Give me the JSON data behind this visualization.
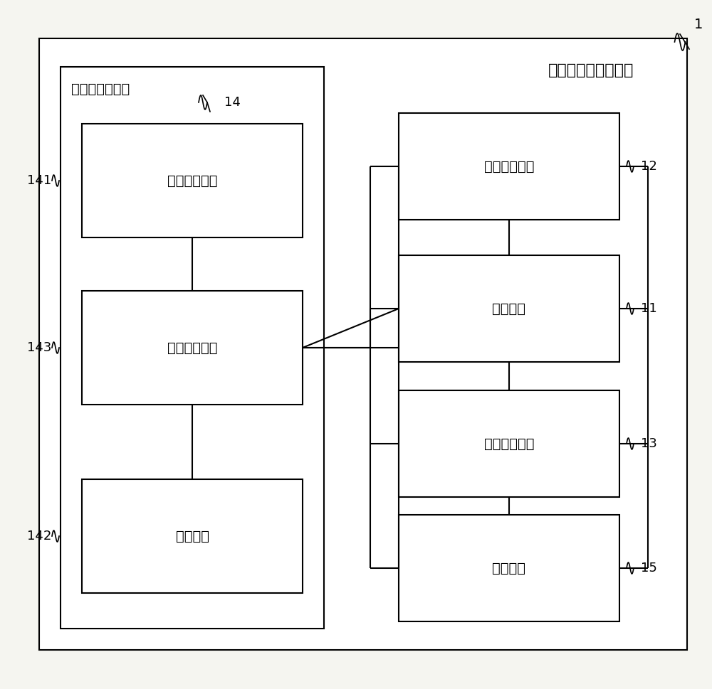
{
  "fig_width": 10.0,
  "fig_height": 9.69,
  "bg_color": "#f5f5f0",
  "box_color": "#ffffff",
  "box_edge_color": "#000000",
  "line_color": "#000000",
  "font_color": "#000000",
  "title_text": "直饮水设备监测系统",
  "label_1": "1",
  "label_14": "14",
  "label_141": "141",
  "label_143": "143",
  "label_142": "142",
  "label_11": "11",
  "label_12": "12",
  "label_13": "13",
  "label_15": "15",
  "outer_left_box_label": "太阳能供电模块",
  "box_141_label": "太阳能电池板",
  "box_143_label": "电池管理模块",
  "box_142_label": "充电电池",
  "box_12_label": "流量检测模块",
  "box_11_label": "主控模块",
  "box_13_label": "漏水检测模块",
  "box_15_label": "开关模块",
  "font_size_main": 16,
  "font_size_label": 14,
  "font_size_ref": 13
}
